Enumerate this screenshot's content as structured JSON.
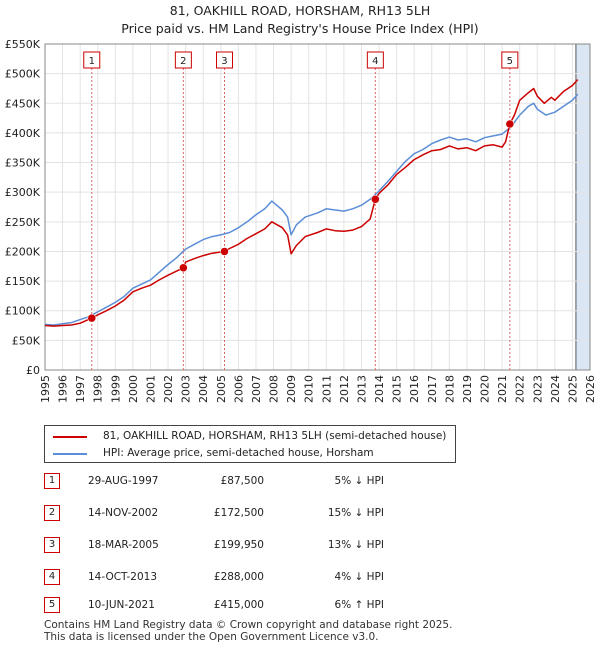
{
  "header": {
    "title_line1": "81, OAKHILL ROAD, HORSHAM, RH13 5LH",
    "title_line2": "Price paid vs. HM Land Registry's House Price Index (HPI)"
  },
  "colors": {
    "property": "#cc0000",
    "hpi": "#5b8ed6",
    "highlight": "#dbe6f5",
    "marker_line": "#e06666"
  },
  "chart_data": {
    "type": "line",
    "x_range": [
      1995,
      2026
    ],
    "ylim": [
      0,
      550000
    ],
    "y_ticks": [
      0,
      50000,
      100000,
      150000,
      200000,
      250000,
      300000,
      350000,
      400000,
      450000,
      500000,
      550000
    ],
    "y_tick_labels": [
      "£0",
      "£50K",
      "£100K",
      "£150K",
      "£200K",
      "£250K",
      "£300K",
      "£350K",
      "£400K",
      "£450K",
      "£500K",
      "£550K"
    ],
    "x_ticks": [
      1995,
      1996,
      1997,
      1998,
      1999,
      2000,
      2001,
      2002,
      2003,
      2004,
      2005,
      2006,
      2007,
      2008,
      2009,
      2010,
      2011,
      2012,
      2013,
      2014,
      2015,
      2016,
      2017,
      2018,
      2019,
      2020,
      2021,
      2022,
      2023,
      2024,
      2025,
      2026
    ],
    "highlight_start": 2025.2,
    "series": [
      {
        "name": "81, OAKHILL ROAD, HORSHAM, RH13 5LH (semi-detached house)",
        "x": [
          1995.0,
          1995.5,
          1996.0,
          1996.5,
          1997.0,
          1997.66,
          1998.0,
          1998.5,
          1999.0,
          1999.5,
          2000.0,
          2000.5,
          2001.0,
          2001.5,
          2002.0,
          2002.87,
          2003.0,
          2003.5,
          2004.0,
          2004.5,
          2005.21,
          2005.5,
          2006.0,
          2006.5,
          2007.0,
          2007.5,
          2007.9,
          2008.5,
          2008.8,
          2009.0,
          2009.3,
          2009.8,
          2010.5,
          2011.0,
          2011.5,
          2012.0,
          2012.5,
          2013.0,
          2013.5,
          2013.79,
          2014.0,
          2014.5,
          2015.0,
          2015.5,
          2016.0,
          2016.5,
          2017.0,
          2017.5,
          2018.0,
          2018.5,
          2019.0,
          2019.5,
          2020.0,
          2020.5,
          2021.0,
          2021.2,
          2021.44,
          2021.7,
          2022.0,
          2022.5,
          2022.8,
          2023.0,
          2023.4,
          2023.8,
          2024.0,
          2024.5,
          2025.0,
          2025.3
        ],
        "values": [
          75000,
          74000,
          75000,
          76000,
          79000,
          87500,
          93000,
          100000,
          108000,
          118000,
          132000,
          138000,
          143000,
          152000,
          160000,
          172500,
          182000,
          188000,
          193000,
          197000,
          199950,
          205000,
          212000,
          222000,
          230000,
          238000,
          250000,
          240000,
          228000,
          196000,
          210000,
          225000,
          232000,
          238000,
          235000,
          234000,
          236000,
          242000,
          255000,
          288000,
          298000,
          312000,
          330000,
          342000,
          355000,
          363000,
          370000,
          372000,
          378000,
          373000,
          375000,
          370000,
          378000,
          380000,
          376000,
          385000,
          415000,
          430000,
          455000,
          468000,
          475000,
          462000,
          450000,
          460000,
          455000,
          470000,
          480000,
          490000
        ]
      },
      {
        "name": "HPI: Average price, semi-detached house, Horsham",
        "x": [
          1995.0,
          1995.5,
          1996.0,
          1996.5,
          1997.0,
          1997.5,
          1998.0,
          1998.5,
          1999.0,
          1999.5,
          2000.0,
          2000.5,
          2001.0,
          2001.5,
          2002.0,
          2002.5,
          2003.0,
          2003.5,
          2004.0,
          2004.5,
          2005.0,
          2005.5,
          2006.0,
          2006.5,
          2007.0,
          2007.5,
          2007.9,
          2008.5,
          2008.8,
          2009.0,
          2009.3,
          2009.8,
          2010.5,
          2011.0,
          2011.5,
          2012.0,
          2012.5,
          2013.0,
          2013.5,
          2014.0,
          2014.5,
          2015.0,
          2015.5,
          2016.0,
          2016.5,
          2017.0,
          2017.5,
          2018.0,
          2018.5,
          2019.0,
          2019.5,
          2020.0,
          2020.5,
          2021.0,
          2021.5,
          2022.0,
          2022.5,
          2022.8,
          2023.0,
          2023.5,
          2024.0,
          2024.5,
          2025.0,
          2025.3
        ],
        "values": [
          77000,
          76000,
          78000,
          80000,
          85000,
          90000,
          98000,
          106000,
          114000,
          124000,
          138000,
          145000,
          152000,
          165000,
          178000,
          190000,
          204000,
          212000,
          220000,
          225000,
          228000,
          232000,
          240000,
          250000,
          262000,
          272000,
          285000,
          270000,
          258000,
          228000,
          245000,
          258000,
          265000,
          272000,
          270000,
          268000,
          272000,
          278000,
          288000,
          302000,
          318000,
          335000,
          352000,
          365000,
          372000,
          382000,
          388000,
          393000,
          388000,
          390000,
          385000,
          392000,
          395000,
          398000,
          410000,
          430000,
          445000,
          450000,
          440000,
          430000,
          435000,
          445000,
          455000,
          465000
        ]
      }
    ],
    "sales": [
      {
        "label": "1",
        "x": 1997.66,
        "value": 87500
      },
      {
        "label": "2",
        "x": 2002.87,
        "value": 172500
      },
      {
        "label": "3",
        "x": 2005.21,
        "value": 199950
      },
      {
        "label": "4",
        "x": 2013.79,
        "value": 288000
      },
      {
        "label": "5",
        "x": 2021.44,
        "value": 415000
      }
    ]
  },
  "legend": {
    "property_label": "81, OAKHILL ROAD, HORSHAM, RH13 5LH (semi-detached house)",
    "hpi_label": "HPI: Average price, semi-detached house, Horsham"
  },
  "sales_table": [
    {
      "num": "1",
      "date": "29-AUG-1997",
      "price": "£87,500",
      "hpi": "5% ↓ HPI"
    },
    {
      "num": "2",
      "date": "14-NOV-2002",
      "price": "£172,500",
      "hpi": "15% ↓ HPI"
    },
    {
      "num": "3",
      "date": "18-MAR-2005",
      "price": "£199,950",
      "hpi": "13% ↓ HPI"
    },
    {
      "num": "4",
      "date": "14-OCT-2013",
      "price": "£288,000",
      "hpi": "4% ↓ HPI"
    },
    {
      "num": "5",
      "date": "10-JUN-2021",
      "price": "£415,000",
      "hpi": "6% ↑ HPI"
    }
  ],
  "footer": {
    "line1": "Contains HM Land Registry data © Crown copyright and database right 2025.",
    "line2": "This data is licensed under the Open Government Licence v3.0."
  }
}
